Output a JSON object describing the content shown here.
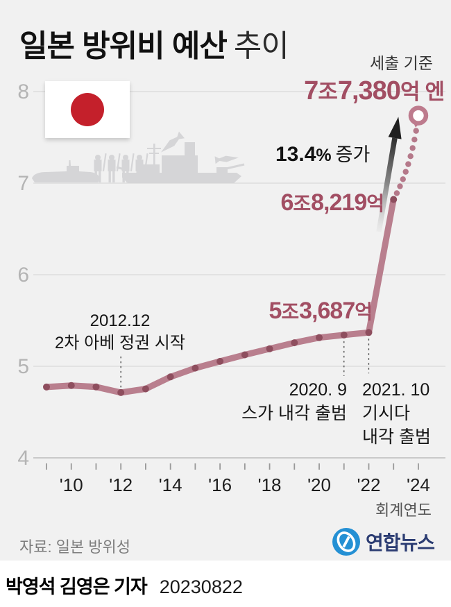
{
  "title": {
    "main": "일본 방위비 예산",
    "sub": "추이"
  },
  "meta": {
    "basis_note": "세출 기준",
    "source": "자료: 일본 방위성",
    "agency": "연합뉴스",
    "byline": "박영석 김영은 기자",
    "date": "20230822"
  },
  "axis": {
    "fiscal_year_label": "회계연도"
  },
  "colors": {
    "background": "#f1f1f1",
    "accent_maroon": "#a24e63",
    "line": "#b97f8e",
    "dot": "#8e4e5e",
    "dotted": "#b5798a",
    "pin": "#bd7b8d",
    "flag_red": "#c4202b",
    "logo_blue": "#2490d4",
    "logo_navy": "#2b3c72",
    "silhouette_gray": "#d5d5d7"
  },
  "chart_data": {
    "type": "line",
    "title": "일본 방위비 예산 추이",
    "subtitle": "세출 기준",
    "xlabel": "회계연도",
    "unit": "조 엔 (trillion yen)",
    "ylim": [
      4,
      8
    ],
    "yticks": [
      8,
      7,
      6,
      5,
      4
    ],
    "grid": true,
    "x": [
      2009,
      2010,
      2011,
      2012,
      2013,
      2014,
      2015,
      2016,
      2017,
      2018,
      2019,
      2020,
      2021,
      2022,
      2023,
      2024
    ],
    "values": [
      4.774,
      4.79,
      4.775,
      4.713,
      4.753,
      4.884,
      4.98,
      5.054,
      5.125,
      5.191,
      5.257,
      5.313,
      5.342,
      5.369,
      6.822,
      7.738
    ],
    "projected_from_year": 2023,
    "xticks": [
      {
        "year": 2010,
        "label": "'10"
      },
      {
        "year": 2012,
        "label": "'12"
      },
      {
        "year": 2014,
        "label": "'14"
      },
      {
        "year": 2016,
        "label": "'16"
      },
      {
        "year": 2018,
        "label": "'18"
      },
      {
        "year": 2020,
        "label": "'20"
      },
      {
        "year": 2022,
        "label": "'22"
      },
      {
        "year": 2024,
        "label": "'24"
      }
    ],
    "value_labels": [
      {
        "year": 2022,
        "parts": [
          "5",
          "조",
          "3,687",
          "억"
        ]
      },
      {
        "year": 2023,
        "parts": [
          "6",
          "조",
          "8,219",
          "억"
        ]
      },
      {
        "year": 2024,
        "parts": [
          "7",
          "조",
          "7,380",
          "억",
          "엔"
        ]
      }
    ],
    "increase_label": {
      "value": "13.4",
      "pct": "%",
      "text": "증가"
    },
    "events": [
      {
        "year": 2012,
        "side": "above",
        "lines": [
          "2012.12",
          "2차 아베 정권 시작"
        ]
      },
      {
        "year": 2021,
        "side": "below",
        "lines": [
          "2020. 9",
          "스가 내각 출범"
        ]
      },
      {
        "year": 2022,
        "side": "below",
        "lines": [
          "2021. 10",
          "기시다",
          "내각 출범"
        ]
      }
    ]
  }
}
